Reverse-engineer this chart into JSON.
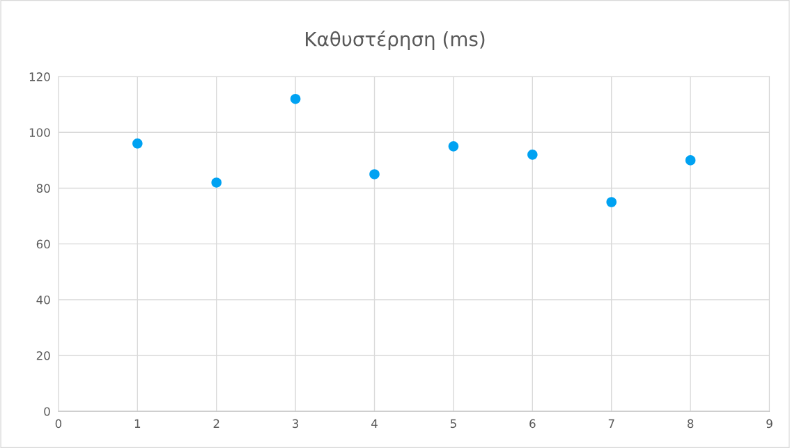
{
  "chart_data": {
    "type": "scatter",
    "title": "Καθυστέρηση (ms)",
    "x": [
      1,
      2,
      3,
      4,
      5,
      6,
      7,
      8
    ],
    "series": [
      {
        "color": "#00a2f2",
        "values": [
          96,
          82,
          112,
          85,
          95,
          92,
          75,
          90
        ]
      }
    ],
    "xlim": [
      0,
      9
    ],
    "xticks": [
      0,
      1,
      2,
      3,
      4,
      5,
      6,
      7,
      8,
      9
    ],
    "ylim": [
      0,
      120
    ],
    "yticks": [
      0,
      20,
      40,
      60,
      80,
      100,
      120
    ],
    "grid": true,
    "marker": "circle"
  }
}
